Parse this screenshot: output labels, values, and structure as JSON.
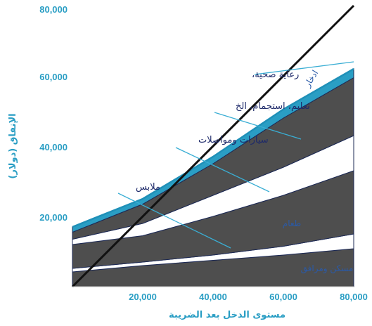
{
  "chart_data": {
    "type": "area",
    "xlabel": "مستوى الدخل بعد الضريبة",
    "ylabel": "الإنفاق (دولار)",
    "xlim": [
      0,
      80000
    ],
    "ylim": [
      0,
      80000
    ],
    "x_ticks": [
      "20,000",
      "40,000",
      "60,000",
      "80,000"
    ],
    "y_ticks": [
      "20,000",
      "40,000",
      "60,000",
      "80,000"
    ],
    "grid": false,
    "boundaries_x": [
      0,
      20000,
      40000,
      60000,
      80000
    ],
    "boundaries": [
      [
        0,
        0,
        0,
        0,
        0
      ],
      [
        4200,
        6000,
        7500,
        9000,
        10800
      ],
      [
        5200,
        7000,
        9000,
        11500,
        15000
      ],
      [
        12000,
        14500,
        20000,
        26000,
        33000
      ],
      [
        13500,
        18000,
        26000,
        34000,
        43000
      ],
      [
        15500,
        23500,
        35000,
        48000,
        59500
      ],
      [
        17000,
        25000,
        37000,
        50500,
        62000
      ]
    ],
    "band_fills": [
      "#4e4e4e",
      "#ffffff",
      "#4e4e4e",
      "#ffffff",
      "#4e4e4e",
      "#2a9ec4"
    ],
    "band_labels": [
      "مسكن ومرافق",
      "طعام",
      "ادخار"
    ],
    "diagonal": {
      "x": [
        0,
        80000
      ],
      "y": [
        0,
        80000
      ]
    },
    "annotations": [
      {
        "text": "رعاية صحية،",
        "target_x": 80000,
        "target_y": 64000
      },
      {
        "text": "تعليم، استجمام، الخ",
        "target_x": 65000,
        "target_y": 42000
      },
      {
        "text": "سيارات ومواصلات",
        "target_x": 56000,
        "target_y": 27000
      },
      {
        "text": "ملابس",
        "target_x": 45000,
        "target_y": 11000
      }
    ]
  }
}
